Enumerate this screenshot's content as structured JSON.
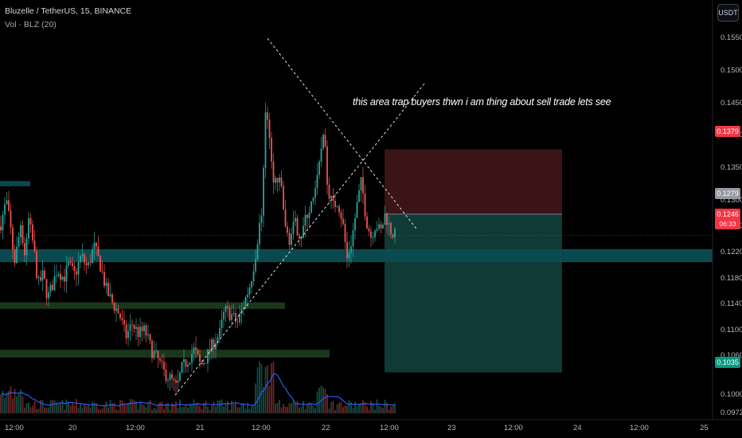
{
  "header": {
    "symbol_line": "Bluzelle / TetherUS, 15, BINANCE",
    "volume_line": "Vol · BLZ (20)"
  },
  "currency_button": "USDT",
  "annotation": "this area trap buyers thwn i am thing about sell trade lets see",
  "colors": {
    "background": "#000000",
    "up": "#26a69a",
    "down": "#ef5350",
    "volume_ma": "#2962ff",
    "support_zone_cyan": "#0b4c54",
    "support_zone_green": "#1b3a1e",
    "short_target": "#0f3a36",
    "short_stop": "#3a1416"
  },
  "price_tags": {
    "stop": {
      "label": "0.1379",
      "color": "#f23645"
    },
    "entry": {
      "label": "0.1279",
      "color": "#9598a1"
    },
    "last": {
      "label": "0.1246",
      "sublabel": "06:33",
      "color": "#f23645"
    },
    "target": {
      "label": "0.1035",
      "color": "#089981"
    }
  },
  "chart_data": {
    "type": "candlestick",
    "title": "Bluzelle / TetherUS, 15, BINANCE",
    "y_axis": {
      "ticks": [
        "0.1550",
        "0.1500",
        "0.1450",
        "0.1400",
        "0.1350",
        "0.1300",
        "0.1260",
        "0.1220",
        "0.1180",
        "0.1140",
        "0.1100",
        "0.1060",
        "0.1000",
        "0.0972"
      ],
      "range": [
        0.0972,
        0.156
      ]
    },
    "x_axis": {
      "ticks": [
        "12:00",
        "20",
        "12:00",
        "21",
        "12:00",
        "22",
        "12:00",
        "23",
        "12:00",
        "24",
        "12:00",
        "25"
      ]
    },
    "price_path": [
      [
        0,
        0.126
      ],
      [
        8,
        0.13
      ],
      [
        14,
        0.125
      ],
      [
        18,
        0.1205
      ],
      [
        22,
        0.123
      ],
      [
        26,
        0.1265
      ],
      [
        32,
        0.121
      ],
      [
        36,
        0.127
      ],
      [
        42,
        0.123
      ],
      [
        48,
        0.117
      ],
      [
        54,
        0.1185
      ],
      [
        60,
        0.115
      ],
      [
        66,
        0.117
      ],
      [
        72,
        0.1195
      ],
      [
        80,
        0.118
      ],
      [
        86,
        0.12
      ],
      [
        94,
        0.1185
      ],
      [
        102,
        0.1215
      ],
      [
        110,
        0.1195
      ],
      [
        118,
        0.123
      ],
      [
        126,
        0.12
      ],
      [
        134,
        0.116
      ],
      [
        142,
        0.114
      ],
      [
        150,
        0.1125
      ],
      [
        158,
        0.109
      ],
      [
        166,
        0.111
      ],
      [
        174,
        0.1095
      ],
      [
        182,
        0.11
      ],
      [
        190,
        0.107
      ],
      [
        198,
        0.1055
      ],
      [
        206,
        0.1035
      ],
      [
        214,
        0.1025
      ],
      [
        222,
        0.101
      ],
      [
        228,
        0.104
      ],
      [
        236,
        0.1055
      ],
      [
        244,
        0.107
      ],
      [
        252,
        0.1045
      ],
      [
        260,
        0.106
      ],
      [
        268,
        0.108
      ],
      [
        276,
        0.1095
      ],
      [
        282,
        0.113
      ],
      [
        290,
        0.1125
      ],
      [
        298,
        0.111
      ],
      [
        306,
        0.114
      ],
      [
        314,
        0.117
      ],
      [
        320,
        0.121
      ],
      [
        326,
        0.126
      ],
      [
        330,
        0.13
      ],
      [
        334,
        0.146
      ],
      [
        338,
        0.14
      ],
      [
        342,
        0.134
      ],
      [
        348,
        0.133
      ],
      [
        354,
        0.132
      ],
      [
        358,
        0.1255
      ],
      [
        364,
        0.124
      ],
      [
        370,
        0.1265
      ],
      [
        378,
        0.1245
      ],
      [
        386,
        0.128
      ],
      [
        394,
        0.13
      ],
      [
        400,
        0.134
      ],
      [
        406,
        0.141
      ],
      [
        412,
        0.132
      ],
      [
        418,
        0.129
      ],
      [
        424,
        0.13
      ],
      [
        430,
        0.127
      ],
      [
        436,
        0.121
      ],
      [
        442,
        0.124
      ],
      [
        448,
        0.129
      ],
      [
        454,
        0.133
      ],
      [
        460,
        0.127
      ],
      [
        466,
        0.1245
      ],
      [
        472,
        0.1265
      ],
      [
        478,
        0.125
      ],
      [
        484,
        0.128
      ],
      [
        490,
        0.1255
      ],
      [
        496,
        0.1246
      ]
    ],
    "price_high": 0.155,
    "price_low": 0.1,
    "volume_scale": "relative",
    "zones": [
      {
        "type": "resistance",
        "price_from": 0.1225,
        "price_to": 0.1205
      },
      {
        "type": "support",
        "price_from": 0.1143,
        "price_to": 0.1133
      },
      {
        "type": "support",
        "price_from": 0.107,
        "price_to": 0.1058
      },
      {
        "type": "marker",
        "price_from": 0.133,
        "price_to": 0.1322
      }
    ],
    "short_position": {
      "entry": 0.1279,
      "stop": 0.1379,
      "target": 0.1035
    },
    "trendlines": [
      {
        "style": "dashed",
        "from": [
          0.1
        ],
        "to": [
          0.148
        ]
      },
      {
        "style": "dashed",
        "from": [
          0.155
        ],
        "to": [
          0.1255
        ]
      }
    ],
    "grid": false,
    "legend": "top-left"
  }
}
